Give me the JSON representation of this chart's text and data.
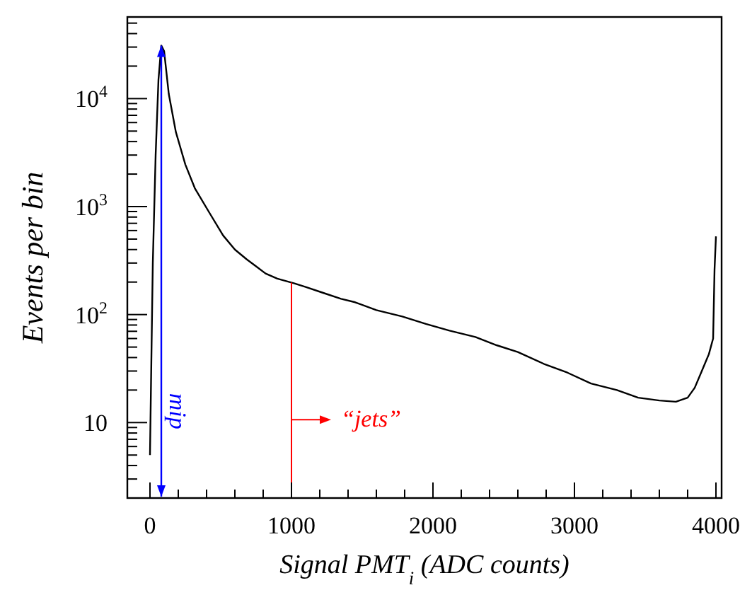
{
  "chart_data": {
    "type": "line",
    "xlabel": "Signal PMT$_{i}$ (ADC counts)",
    "ylabel": "Events per bin",
    "log": "y",
    "grid": false,
    "marker": "none",
    "line_style": "solid",
    "xlim": [
      -160,
      4040
    ],
    "ylim": [
      2,
      57000
    ],
    "xticks": [
      0,
      {
        "value": 200,
        "label": null
      },
      {
        "value": 400,
        "label": null
      },
      {
        "value": 600,
        "label": null
      },
      {
        "value": 800,
        "label": null
      },
      1000,
      {
        "value": 1200,
        "label": null
      },
      {
        "value": 1400,
        "label": null
      },
      {
        "value": 1600,
        "label": null
      },
      {
        "value": 1800,
        "label": null
      },
      2000,
      {
        "value": 2200,
        "label": null
      },
      {
        "value": 2400,
        "label": null
      },
      {
        "value": 2600,
        "label": null
      },
      {
        "value": 2800,
        "label": null
      },
      3000,
      {
        "value": 3200,
        "label": null
      },
      {
        "value": 3400,
        "label": null
      },
      {
        "value": 3600,
        "label": null
      },
      {
        "value": 3800,
        "label": null
      },
      4000
    ],
    "yticks": [
      {
        "value": 3,
        "label": null
      },
      {
        "value": 4,
        "label": null
      },
      {
        "value": 5,
        "label": null
      },
      {
        "value": 6,
        "label": null
      },
      {
        "value": 7,
        "label": null
      },
      {
        "value": 8,
        "label": null
      },
      {
        "value": 9,
        "label": null
      },
      10,
      {
        "value": 20,
        "label": null
      },
      {
        "value": 30,
        "label": null
      },
      {
        "value": 40,
        "label": null
      },
      {
        "value": 50,
        "label": null
      },
      {
        "value": 60,
        "label": null
      },
      {
        "value": 70,
        "label": null
      },
      {
        "value": 80,
        "label": null
      },
      {
        "value": 90,
        "label": null
      },
      {
        "value": 100,
        "label": "10$^{2}$"
      },
      {
        "value": 200,
        "label": null
      },
      {
        "value": 300,
        "label": null
      },
      {
        "value": 400,
        "label": null
      },
      {
        "value": 500,
        "label": null
      },
      {
        "value": 600,
        "label": null
      },
      {
        "value": 700,
        "label": null
      },
      {
        "value": 800,
        "label": null
      },
      {
        "value": 900,
        "label": null
      },
      {
        "value": 1000,
        "label": "10$^{3}$"
      },
      {
        "value": 2000,
        "label": null
      },
      {
        "value": 3000,
        "label": null
      },
      {
        "value": 4000,
        "label": null
      },
      {
        "value": 5000,
        "label": null
      },
      {
        "value": 6000,
        "label": null
      },
      {
        "value": 7000,
        "label": null
      },
      {
        "value": 8000,
        "label": null
      },
      {
        "value": 9000,
        "label": null
      },
      {
        "value": 10000,
        "label": "10$^{4}$"
      },
      {
        "value": 20000,
        "label": null
      },
      {
        "value": 30000,
        "label": null
      },
      {
        "value": 40000,
        "label": null
      },
      {
        "value": 50000,
        "label": null
      }
    ],
    "series": [
      {
        "color": "#000000",
        "x": [
          0,
          10,
          20,
          40,
          60,
          80,
          100,
          133,
          183,
          250,
          317,
          417,
          517,
          600,
          683,
          750,
          817,
          900,
          1017,
          1100,
          1217,
          1350,
          1450,
          1600,
          1783,
          1950,
          2117,
          2300,
          2450,
          2600,
          2783,
          2950,
          3117,
          3300,
          3450,
          3600,
          3717,
          3800,
          3850,
          3900,
          3950,
          3980,
          3990,
          4000
        ],
        "values": [
          5,
          40,
          300,
          3000,
          15000,
          31000,
          27500,
          11000,
          4900,
          2450,
          1480,
          890,
          540,
          400,
          325,
          280,
          240,
          215,
          195,
          180,
          160,
          140,
          130,
          110,
          96,
          82,
          71,
          62,
          52,
          45,
          35,
          29,
          23,
          20,
          17,
          16,
          15.6,
          17,
          21,
          30,
          43,
          60,
          260,
          530
        ]
      }
    ],
    "ref_lines": [
      {
        "axis": "x",
        "value": 80,
        "label": "mip",
        "color": "#0000ff"
      },
      {
        "axis": "x",
        "value": 1000,
        "label": "“jets”",
        "color": "#ff0000"
      }
    ]
  }
}
